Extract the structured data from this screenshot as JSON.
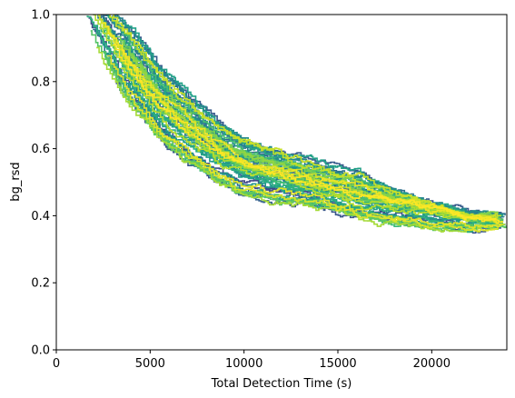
{
  "chart_data": {
    "type": "line",
    "title": "",
    "xlabel": "Total Detection Time (s)",
    "ylabel": "bg_rsd",
    "xlim": [
      0,
      24000
    ],
    "ylim": [
      0.0,
      1.0
    ],
    "xticks": [
      0,
      5000,
      10000,
      15000,
      20000
    ],
    "xtick_labels": [
      "0",
      "5000",
      "10000",
      "15000",
      "20000"
    ],
    "yticks": [
      0.0,
      0.2,
      0.4,
      0.6,
      0.8,
      1.0
    ],
    "ytick_labels": [
      "0.0",
      "0.2",
      "0.4",
      "0.6",
      "0.8",
      "1.0"
    ],
    "grid": false,
    "legend": "none",
    "colormap": "viridis",
    "series_count": 60,
    "envelope": {
      "description": "many stepped noisy curves decaying from ~1.0 toward ~0.38",
      "x": [
        1700,
        2500,
        3500,
        4500,
        5500,
        7000,
        8500,
        10000,
        12000,
        14000,
        16000,
        18000,
        20000,
        22000,
        24000
      ],
      "lower": [
        0.95,
        0.86,
        0.76,
        0.69,
        0.62,
        0.55,
        0.49,
        0.45,
        0.43,
        0.42,
        0.39,
        0.37,
        0.36,
        0.36,
        0.37
      ],
      "center": [
        1.02,
        0.95,
        0.85,
        0.78,
        0.71,
        0.64,
        0.58,
        0.54,
        0.51,
        0.48,
        0.45,
        0.43,
        0.41,
        0.39,
        0.38
      ],
      "upper": [
        1.05,
        1.03,
        0.99,
        0.92,
        0.84,
        0.76,
        0.68,
        0.63,
        0.59,
        0.56,
        0.53,
        0.48,
        0.44,
        0.41,
        0.4
      ]
    }
  }
}
